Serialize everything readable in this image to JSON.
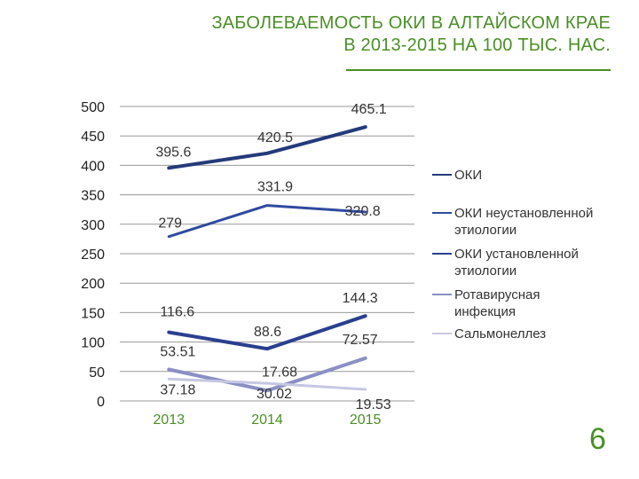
{
  "slide": {
    "title_line1": "ЗАБОЛЕВАЕМОСТЬ ОКИ В АЛТАЙСКОМ КРАЕ",
    "title_line2": "В 2013-2015 НА 100 ТЫС. НАС.",
    "page_number": "6",
    "accent_color": "#4a8f26"
  },
  "chart_data": {
    "type": "line",
    "categories": [
      "2013",
      "2014",
      "2015"
    ],
    "ylim": [
      0,
      500
    ],
    "yticks": [
      "0",
      "50",
      "100",
      "150",
      "200",
      "250",
      "300",
      "350",
      "400",
      "450",
      "500"
    ],
    "grid": true,
    "legend_position": "right",
    "series": [
      {
        "name": "ОКИ",
        "values": [
          395.6,
          420.5,
          465.1
        ],
        "labels": [
          "395.6",
          "420.5",
          "465.1"
        ],
        "color": "#243a7a",
        "width": 4
      },
      {
        "name": "ОКИ неустановленной этиологии",
        "values": [
          279,
          331.9,
          320.8
        ],
        "labels": [
          "279",
          "331.9",
          "320.8"
        ],
        "color": "#2f4aa0",
        "width": 3
      },
      {
        "name": "ОКИ установленной этиологии",
        "values": [
          116.6,
          88.6,
          144.3
        ],
        "labels": [
          "116.6",
          "88.6",
          "144.3"
        ],
        "color": "#2a3f8f",
        "width": 4
      },
      {
        "name": "Ротавирусная инфекция",
        "values": [
          53.51,
          17.68,
          72.57
        ],
        "labels": [
          "53.51",
          "17.68",
          "72.57"
        ],
        "color": "#8a8fc4",
        "width": 4
      },
      {
        "name": "Сальмонеллез",
        "values": [
          37.18,
          30.02,
          19.53
        ],
        "labels": [
          "37.18",
          "30.02",
          "19.53"
        ],
        "color": "#c6c8e2",
        "width": 3
      }
    ]
  }
}
